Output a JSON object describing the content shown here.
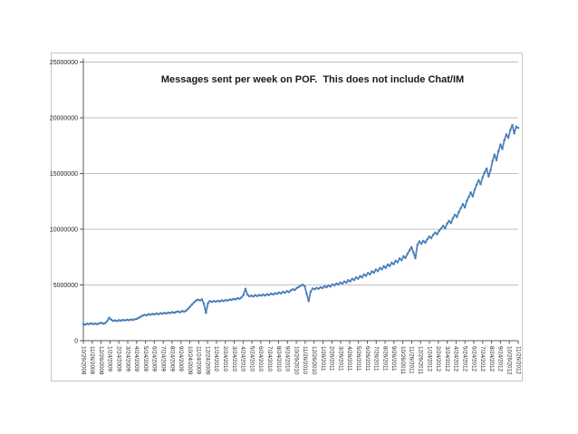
{
  "window": {
    "background": "#ffffff"
  },
  "chart": {
    "frame_border_color": "#c6c6c6",
    "gridline_color": "#bfbfbf",
    "axis_color": "#595959",
    "line_color": "#4a7ebb",
    "marker_color": "#4a7ebb",
    "text_color": "#1f1f1f",
    "title_color": "#1a1a1a"
  },
  "chart_data": {
    "type": "line",
    "title": "Messages sent per week on POF.  This does not include Chat/IM",
    "xlabel": "",
    "ylabel": "",
    "ylim": [
      0,
      25000000
    ],
    "y_tick_interval": 5000000,
    "y_tick_labels": [
      "0",
      "5000000",
      "10000000",
      "15000000",
      "20000000",
      "25000000"
    ],
    "grid": "horizontal",
    "legend": "none",
    "marker": "dot",
    "x_labels": [
      "10/26/2008",
      "11/26/2008",
      "12/26/2008",
      "1/24/2009",
      "2/24/2009",
      "3/24/2009",
      "4/24/2009",
      "5/24/2009",
      "6/24/2009",
      "7/24/2009",
      "8/24/2009",
      "9/24/2009",
      "10/24/2009",
      "11/24/2009",
      "12/24/2009",
      "1/24/2010",
      "2/24/2010",
      "3/24/2010",
      "4/24/2010",
      "5/24/2010",
      "6/24/2010",
      "7/24/2010",
      "8/24/2010",
      "9/24/2010",
      "10/26/2010",
      "11/26/2010",
      "12/26/2010",
      "1/26/2011",
      "2/26/2011",
      "3/26/2011",
      "4/26/2011",
      "5/26/2011",
      "6/26/2011",
      "7/26/2011",
      "8/26/2011",
      "9/26/2011",
      "10/26/2011",
      "11/26/2011",
      "12/26/2011",
      "1/24/2012",
      "2/24/2012",
      "3/24/2012",
      "4/24/2012",
      "5/24/2012",
      "6/24/2012",
      "7/24/2012",
      "8/24/2012",
      "9/24/2012",
      "10/26/2012",
      "11/26/2012"
    ],
    "values_millions": [
      1.5,
      1.45,
      1.52,
      1.48,
      1.55,
      1.5,
      1.53,
      1.48,
      1.55,
      1.6,
      1.52,
      1.58,
      1.75,
      2.05,
      1.9,
      1.78,
      1.82,
      1.76,
      1.84,
      1.8,
      1.86,
      1.82,
      1.88,
      1.84,
      1.9,
      1.86,
      1.92,
      1.95,
      2.05,
      2.15,
      2.25,
      2.32,
      2.28,
      2.38,
      2.33,
      2.4,
      2.36,
      2.44,
      2.38,
      2.46,
      2.42,
      2.5,
      2.44,
      2.52,
      2.48,
      2.56,
      2.5,
      2.58,
      2.62,
      2.55,
      2.66,
      2.6,
      2.7,
      2.85,
      3.05,
      3.25,
      3.45,
      3.6,
      3.68,
      3.62,
      3.7,
      3.3,
      2.5,
      3.35,
      3.55,
      3.48,
      3.56,
      3.5,
      3.58,
      3.52,
      3.62,
      3.56,
      3.65,
      3.6,
      3.7,
      3.66,
      3.75,
      3.7,
      3.82,
      3.76,
      3.88,
      4.1,
      4.65,
      4.15,
      3.98,
      4.05,
      3.96,
      4.08,
      4.0,
      4.1,
      4.04,
      4.14,
      4.06,
      4.16,
      4.1,
      4.22,
      4.15,
      4.26,
      4.2,
      4.32,
      4.25,
      4.38,
      4.3,
      4.44,
      4.36,
      4.52,
      4.62,
      4.55,
      4.72,
      4.82,
      4.95,
      5.02,
      4.88,
      4.2,
      3.55,
      4.4,
      4.68,
      4.62,
      4.74,
      4.66,
      4.8,
      4.72,
      4.88,
      4.8,
      4.95,
      4.86,
      5.05,
      4.96,
      5.12,
      5.04,
      5.22,
      5.12,
      5.3,
      5.2,
      5.42,
      5.32,
      5.55,
      5.44,
      5.68,
      5.56,
      5.8,
      5.68,
      5.94,
      5.82,
      6.08,
      5.95,
      6.22,
      6.1,
      6.38,
      6.24,
      6.52,
      6.4,
      6.68,
      6.54,
      6.84,
      6.7,
      7.0,
      6.86,
      7.18,
      7.04,
      7.38,
      7.22,
      7.58,
      7.42,
      7.8,
      8.1,
      8.4,
      7.9,
      7.4,
      8.6,
      8.9,
      8.7,
      8.95,
      8.8,
      9.1,
      9.35,
      9.2,
      9.5,
      9.7,
      9.55,
      9.85,
      10.05,
      10.3,
      10.1,
      10.5,
      10.75,
      10.55,
      11.0,
      11.3,
      11.1,
      11.55,
      11.9,
      12.25,
      11.95,
      12.55,
      12.9,
      13.3,
      12.95,
      13.55,
      14.0,
      14.4,
      14.05,
      14.65,
      15.1,
      15.45,
      14.75,
      15.3,
      16.1,
      16.7,
      16.2,
      17.0,
      17.6,
      17.2,
      18.0,
      18.5,
      18.2,
      18.9,
      19.35,
      18.6,
      19.2,
      19.1
    ]
  }
}
